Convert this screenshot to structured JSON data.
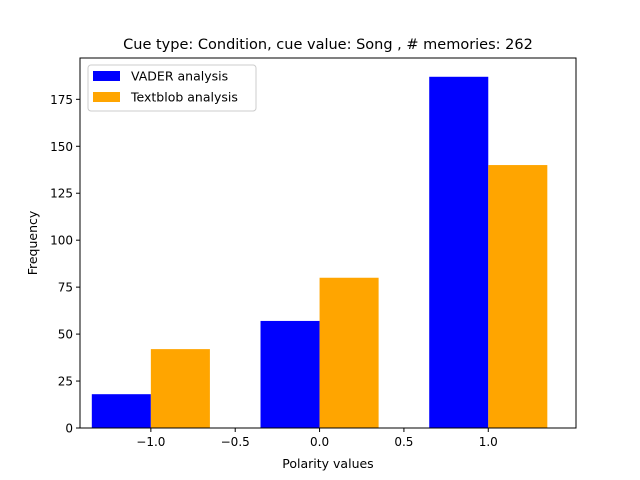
{
  "chart_data": {
    "type": "bar",
    "title": "Cue type: Condition, cue value: Song , # memories: 262",
    "xlabel": "Polarity values",
    "ylabel": "Frequency",
    "x_categories": [
      -1.0,
      0.0,
      1.0
    ],
    "bar_width": 0.35,
    "xlim": [
      -1.42,
      1.52
    ],
    "ylim": [
      0,
      197
    ],
    "x_ticks": [
      -1.0,
      -0.5,
      0.0,
      0.5,
      1.0
    ],
    "x_tick_labels": [
      "−1.0",
      "−0.5",
      "0.0",
      "0.5",
      "1.0"
    ],
    "y_ticks": [
      0,
      25,
      50,
      75,
      100,
      125,
      150,
      175
    ],
    "y_tick_labels": [
      "0",
      "25",
      "50",
      "75",
      "100",
      "125",
      "150",
      "175"
    ],
    "grid": false,
    "legend_position": "upper-left",
    "series": [
      {
        "name": "VADER analysis",
        "color": "#0000ff",
        "x": [
          -1.0,
          0.0,
          1.0
        ],
        "values": [
          18,
          57,
          187
        ]
      },
      {
        "name": "Textblob analysis",
        "color": "#ffa500",
        "x": [
          -1.0,
          0.0,
          1.0
        ],
        "values": [
          42,
          80,
          140
        ]
      }
    ]
  }
}
